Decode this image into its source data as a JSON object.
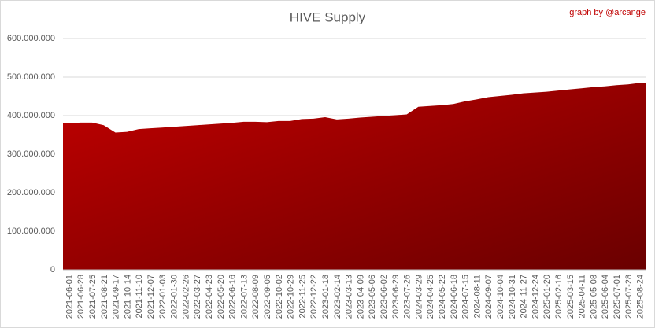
{
  "chart_data": {
    "type": "area",
    "title": "HIVE Supply",
    "annotation": "graph by @arcange",
    "color": "#c00000",
    "gradient_end": "#6a0000",
    "grid": true,
    "categories": [
      "2021-06-01",
      "2021-06-28",
      "2021-07-25",
      "2021-08-21",
      "2021-09-17",
      "2021-10-14",
      "2021-11-10",
      "2021-12-07",
      "2022-01-03",
      "2022-01-30",
      "2022-02-26",
      "2022-03-27",
      "2022-04-23",
      "2022-05-20",
      "2022-06-16",
      "2022-07-13",
      "2022-08-09",
      "2022-09-05",
      "2022-10-02",
      "2022-10-29",
      "2022-11-25",
      "2022-12-22",
      "2023-01-18",
      "2023-02-14",
      "2023-03-13",
      "2023-04-09",
      "2023-05-06",
      "2023-06-02",
      "2023-06-29",
      "2023-07-26",
      "2024-03-29",
      "2024-04-25",
      "2024-05-22",
      "2024-06-18",
      "2024-07-15",
      "2024-08-11",
      "2024-09-07",
      "2024-10-04",
      "2024-10-31",
      "2024-11-27",
      "2024-12-24",
      "2025-01-20",
      "2025-02-16",
      "2025-03-15",
      "2025-04-11",
      "2025-05-08",
      "2025-06-04",
      "2025-07-01",
      "2025-07-28",
      "2025-08-24"
    ],
    "values": [
      380000000,
      382000000,
      382000000,
      375000000,
      356000000,
      358000000,
      365000000,
      367000000,
      369000000,
      371000000,
      373000000,
      375000000,
      377000000,
      379000000,
      381000000,
      384000000,
      384000000,
      383000000,
      386000000,
      386000000,
      391000000,
      392000000,
      396000000,
      390000000,
      392000000,
      395000000,
      397000000,
      399000000,
      401000000,
      403000000,
      423000000,
      425000000,
      427000000,
      430000000,
      437000000,
      442000000,
      448000000,
      451000000,
      454000000,
      458000000,
      460000000,
      462000000,
      465000000,
      468000000,
      471000000,
      474000000,
      476000000,
      479000000,
      481000000,
      485000000
    ],
    "ylim": [
      0,
      600000000
    ],
    "yticks": [
      0,
      {
        "value": 100000000,
        "label": "100.000.000"
      },
      {
        "value": 200000000,
        "label": "200.000.000"
      },
      {
        "value": 300000000,
        "label": "300.000.000"
      },
      {
        "value": 400000000,
        "label": "400.000.000"
      },
      {
        "value": 500000000,
        "label": "500.000.000"
      },
      {
        "value": 600000000,
        "label": "600.000.000"
      }
    ]
  }
}
